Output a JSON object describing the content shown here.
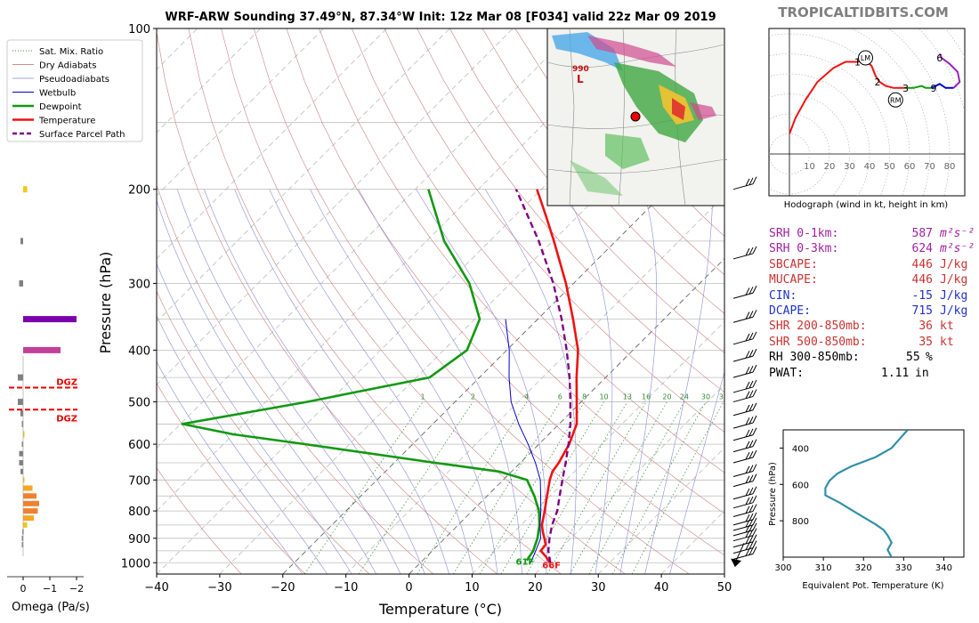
{
  "header": {
    "title": "WRF-ARW Sounding 37.49°N, 87.34°W Init: 12z Mar 08 [F034] valid 22z Mar 09 2019",
    "site": "TROPICALTIDBITS.COM"
  },
  "legend": [
    {
      "label": "Sat. Mix. Ratio",
      "color": "#2e8b2e",
      "style": "dotted"
    },
    {
      "label": "Dry Adiabats",
      "color": "#c86464",
      "style": "solid-thin"
    },
    {
      "label": "Pseudoadiabats",
      "color": "#8888cc",
      "style": "solid-thin"
    },
    {
      "label": "Wetbulb",
      "color": "#0000cc",
      "style": "solid"
    },
    {
      "label": "Dewpoint",
      "color": "#119911",
      "style": "thick"
    },
    {
      "label": "Temperature",
      "color": "#ee1111",
      "style": "thick"
    },
    {
      "label": "Surface Parcel Path",
      "color": "#800080",
      "style": "dashed"
    }
  ],
  "chart_data": [
    {
      "type": "line",
      "title": "WRF-ARW Sounding 37.49°N, 87.34°W Init: 12z Mar 08 [F034] valid 22z Mar 09 2019",
      "xlabel": "Temperature (°C)",
      "ylabel": "Pressure (hPa)",
      "xlim": [
        -40,
        50
      ],
      "ylim": [
        1050,
        100
      ],
      "log_y": true,
      "xticks": [
        "−40",
        "−30",
        "−20",
        "−10",
        "0",
        "10",
        "20",
        "30",
        "40",
        "50"
      ],
      "yticks": [
        "100",
        "200",
        "300",
        "400",
        "500",
        "600",
        "700",
        "800",
        "900",
        "1000"
      ],
      "series": [
        {
          "name": "Temperature",
          "color": "#ee1111",
          "points": [
            [
              1000,
              20.5
            ],
            [
              975,
              19
            ],
            [
              950,
              17.2
            ],
            [
              925,
              17
            ],
            [
              900,
              15.8
            ],
            [
              875,
              14.5
            ],
            [
              850,
              13.3
            ],
            [
              800,
              11.5
            ],
            [
              750,
              9.5
            ],
            [
              700,
              7.4
            ],
            [
              675,
              6.5
            ],
            [
              650,
              6.1
            ],
            [
              600,
              4.8
            ],
            [
              550,
              2.8
            ],
            [
              500,
              -0.7
            ],
            [
              450,
              -4.6
            ],
            [
              400,
              -8.7
            ],
            [
              350,
              -14.4
            ],
            [
              300,
              -21.2
            ],
            [
              250,
              -29.8
            ],
            [
              225,
              -34.9
            ],
            [
              200,
              -40.7
            ]
          ]
        },
        {
          "name": "Dewpoint",
          "color": "#119911",
          "points": [
            [
              990,
              16.5
            ],
            [
              950,
              16
            ],
            [
              900,
              14.7
            ],
            [
              850,
              12.9
            ],
            [
              800,
              10.6
            ],
            [
              750,
              7.5
            ],
            [
              700,
              3.8
            ],
            [
              675,
              -2
            ],
            [
              650,
              -13.5
            ],
            [
              600,
              -37
            ],
            [
              575,
              -50
            ],
            [
              550,
              -59.7
            ],
            [
              500,
              -43.5
            ],
            [
              450,
              -27.9
            ],
            [
              400,
              -26.3
            ],
            [
              350,
              -29.2
            ],
            [
              300,
              -36.5
            ],
            [
              250,
              -47.2
            ],
            [
              200,
              -57.9
            ]
          ]
        },
        {
          "name": "Wetbulb",
          "color": "#0000cc",
          "points": [
            [
              1000,
              17.5
            ],
            [
              950,
              16.4
            ],
            [
              900,
              15.2
            ],
            [
              850,
              13
            ],
            [
              800,
              10.9
            ],
            [
              750,
              8.5
            ],
            [
              700,
              5.9
            ],
            [
              650,
              2.4
            ],
            [
              600,
              -1.7
            ],
            [
              550,
              -6.4
            ],
            [
              500,
              -11.1
            ],
            [
              450,
              -15.3
            ],
            [
              400,
              -19.6
            ],
            [
              350,
              -25.1
            ]
          ]
        },
        {
          "name": "Surface Parcel Path",
          "color": "#800080",
          "points": [
            [
              1000,
              20.6
            ],
            [
              950,
              18.4
            ],
            [
              900,
              16.6
            ],
            [
              850,
              14.9
            ],
            [
              800,
              13.5
            ],
            [
              750,
              11.5
            ],
            [
              700,
              9.4
            ],
            [
              650,
              7.2
            ],
            [
              600,
              4.7
            ],
            [
              550,
              1.8
            ],
            [
              500,
              -1.7
            ],
            [
              450,
              -5.7
            ],
            [
              400,
              -10.5
            ],
            [
              350,
              -16.2
            ],
            [
              300,
              -23.2
            ],
            [
              250,
              -32.2
            ],
            [
              200,
              -44
            ]
          ]
        }
      ],
      "annotations": {
        "dewpoint_sfc": "61F",
        "temp_sfc": "66F"
      },
      "mixing_ratio_labels": [
        "1",
        "2",
        "4",
        "6",
        "8",
        "10",
        "13",
        "16",
        "20",
        "24",
        "30",
        "36"
      ]
    },
    {
      "type": "bar",
      "xlabel": "Omega (Pa/s)",
      "xticks": [
        "0",
        "−1",
        "−2"
      ],
      "xlim": [
        0.3,
        -2
      ],
      "bars": [
        {
          "p": 200,
          "value": -0.15,
          "color": "#f5c518"
        },
        {
          "p": 250,
          "value": 0.1,
          "color": "#808080"
        },
        {
          "p": 300,
          "value": 0.15,
          "color": "#808080"
        },
        {
          "p": 350,
          "value": -2.0,
          "color": "#7a00aa"
        },
        {
          "p": 400,
          "value": -1.4,
          "color": "#c2409a"
        },
        {
          "p": 450,
          "value": 0.2,
          "color": "#808080"
        },
        {
          "p": 500,
          "value": 0.2,
          "color": "#808080"
        },
        {
          "p": 525,
          "value": 0.1,
          "color": "#808080"
        },
        {
          "p": 550,
          "value": 0.05,
          "color": "#808080"
        },
        {
          "p": 575,
          "value": -0.05,
          "color": "#f5c518"
        },
        {
          "p": 600,
          "value": 0.05,
          "color": "#808080"
        },
        {
          "p": 625,
          "value": 0.15,
          "color": "#808080"
        },
        {
          "p": 650,
          "value": 0.15,
          "color": "#808080"
        },
        {
          "p": 675,
          "value": 0.1,
          "color": "#808080"
        },
        {
          "p": 700,
          "value": -0.05,
          "color": "#f5c518"
        },
        {
          "p": 725,
          "value": -0.35,
          "color": "#f5a623"
        },
        {
          "p": 750,
          "value": -0.5,
          "color": "#f08030"
        },
        {
          "p": 775,
          "value": -0.6,
          "color": "#f08030"
        },
        {
          "p": 800,
          "value": -0.55,
          "color": "#f08030"
        },
        {
          "p": 825,
          "value": -0.4,
          "color": "#f5a623"
        },
        {
          "p": 850,
          "value": -0.15,
          "color": "#f5c518"
        },
        {
          "p": 875,
          "value": 0.03,
          "color": "#808080"
        },
        {
          "p": 900,
          "value": 0.05,
          "color": "#808080"
        },
        {
          "p": 925,
          "value": 0.05,
          "color": "#808080"
        }
      ],
      "dgz": [
        {
          "p": 470,
          "label": "DGZ"
        },
        {
          "p": 517,
          "label": "DGZ"
        }
      ]
    },
    {
      "type": "line",
      "xlabel": "Hodograph (wind in kt, height in km)",
      "rings": [
        "10",
        "20",
        "30",
        "40",
        "50",
        "60",
        "70",
        "80"
      ],
      "points": [
        {
          "label": "1",
          "u": 34,
          "v": 46
        },
        {
          "label": "2",
          "u": 44,
          "v": 36
        },
        {
          "label": "3",
          "u": 58,
          "v": 33
        },
        {
          "label": "9",
          "u": 72,
          "v": 33
        },
        {
          "label": "6",
          "u": 75,
          "v": 48
        }
      ],
      "markers": [
        {
          "label": "LM",
          "u": 38,
          "v": 48
        },
        {
          "label": "RM",
          "u": 53,
          "v": 27
        }
      ],
      "segments": [
        {
          "color": "#ee1111",
          "points": [
            [
              0,
              10
            ],
            [
              3,
              18
            ],
            [
              8,
              27
            ],
            [
              14,
              36
            ],
            [
              22,
              43
            ],
            [
              28,
              46
            ],
            [
              34,
              46
            ],
            [
              38,
              47
            ],
            [
              41,
              44
            ],
            [
              43,
              39
            ],
            [
              45,
              36
            ],
            [
              48,
              34
            ],
            [
              52,
              33
            ],
            [
              58,
              33
            ]
          ]
        },
        {
          "color": "#119911",
          "points": [
            [
              58,
              33
            ],
            [
              62,
              33
            ],
            [
              66,
              34
            ],
            [
              68,
              33
            ],
            [
              71,
              33
            ]
          ]
        },
        {
          "color": "#0000cc",
          "points": [
            [
              71,
              33
            ],
            [
              75,
              35
            ],
            [
              78,
              33
            ],
            [
              82,
              33
            ]
          ]
        },
        {
          "color": "#a020c0",
          "points": [
            [
              82,
              33
            ],
            [
              85,
              36
            ],
            [
              84,
              41
            ],
            [
              80,
              45
            ],
            [
              76,
              48
            ],
            [
              75,
              50
            ]
          ]
        }
      ]
    },
    {
      "type": "line",
      "xlabel": "Equivalent Pot. Temperature (K)",
      "ylabel": "Pressure (hPa)",
      "xlim": [
        300,
        345
      ],
      "ylim": [
        1000,
        300
      ],
      "xticks": [
        "300",
        "310",
        "320",
        "330",
        "340"
      ],
      "yticks": [
        "400",
        "600",
        "800"
      ],
      "series": [
        {
          "name": "",
          "color": "#3090a8",
          "points": [
            [
              1000,
              327
            ],
            [
              960,
              326
            ],
            [
              920,
              327
            ],
            [
              880,
              326
            ],
            [
              850,
              325
            ],
            [
              820,
              323
            ],
            [
              780,
              320
            ],
            [
              740,
              317
            ],
            [
              700,
              314
            ],
            [
              660,
              310.5
            ],
            [
              620,
              310.5
            ],
            [
              580,
              311.5
            ],
            [
              540,
              313.5
            ],
            [
              500,
              317
            ],
            [
              450,
              323
            ],
            [
              400,
              327
            ],
            [
              350,
              329
            ],
            [
              300,
              331
            ]
          ]
        }
      ]
    }
  ],
  "stats": [
    {
      "label": "SRH 0-1km:",
      "value": "587",
      "unit": "m²s⁻²",
      "color": "#a020a0"
    },
    {
      "label": "SRH 0-3km:",
      "value": "624",
      "unit": "m²s⁻²",
      "color": "#a020a0"
    },
    {
      "label": "SBCAPE:",
      "value": "446",
      "unit": "J/kg",
      "color": "#c83232"
    },
    {
      "label": "MUCAPE:",
      "value": "446",
      "unit": "J/kg",
      "color": "#c83232"
    },
    {
      "label": "CIN:",
      "value": "-15",
      "unit": "J/kg",
      "color": "#2030c8"
    },
    {
      "label": "DCAPE:",
      "value": "715",
      "unit": "J/kg",
      "color": "#2030c8"
    },
    {
      "label": "SHR 200-850mb:",
      "value": "36",
      "unit": "kt",
      "color": "#c83232"
    },
    {
      "label": "SHR 500-850mb:",
      "value": "35",
      "unit": "kt",
      "color": "#c83232"
    },
    {
      "label": "RH 300-850mb:",
      "value": "55",
      "unit": "%",
      "color": "#000000"
    },
    {
      "label": "PWAT:",
      "value": "1.11",
      "unit": "in",
      "color": "#000000"
    }
  ],
  "map": {
    "low_label": "L",
    "low_value": "990"
  }
}
